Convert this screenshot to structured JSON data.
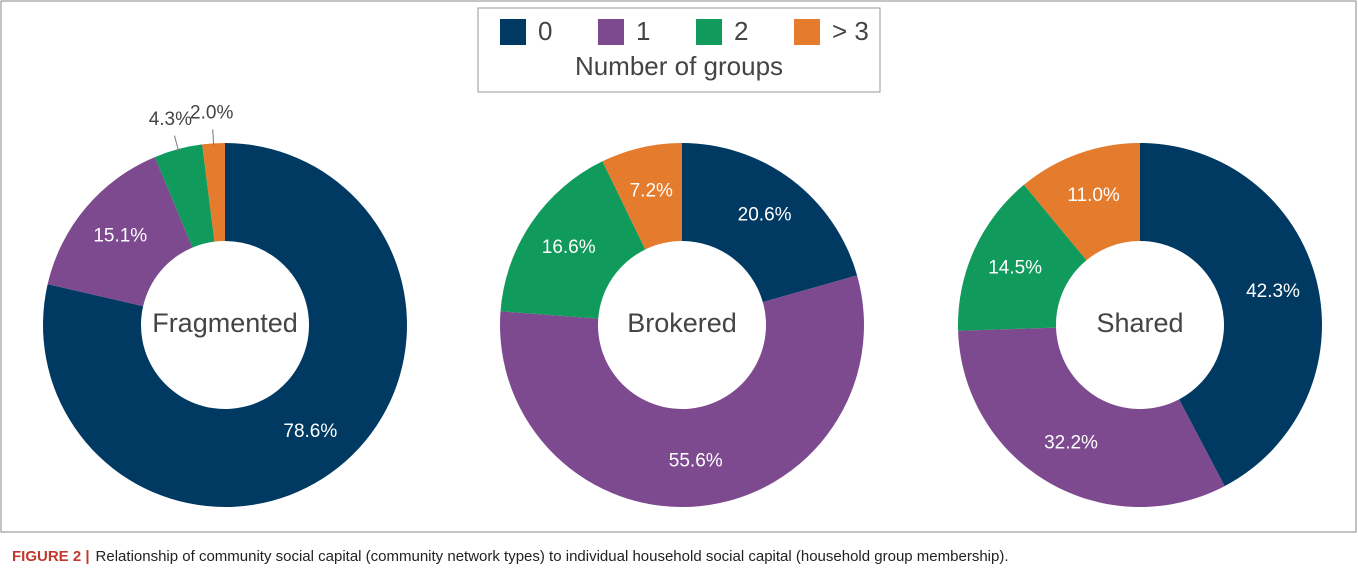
{
  "chart_data": [
    {
      "type": "pie",
      "title": "Fragmented",
      "categories": [
        "0",
        "1",
        "2",
        "> 3"
      ],
      "values": [
        78.6,
        15.1,
        4.3,
        2.0
      ],
      "value_labels": [
        "78.6%",
        "15.1%",
        "4.3%",
        "2.0%"
      ],
      "colors": [
        "#003a63",
        "#7d4a8f",
        "#109a5b",
        "#e57b2d"
      ]
    },
    {
      "type": "pie",
      "title": "Brokered",
      "categories": [
        "0",
        "1",
        "2",
        "> 3"
      ],
      "values": [
        20.6,
        55.6,
        16.6,
        7.2
      ],
      "value_labels": [
        "20.6%",
        "55.6%",
        "16.6%",
        "7.2%"
      ],
      "colors": [
        "#003a63",
        "#7d4a8f",
        "#109a5b",
        "#e57b2d"
      ]
    },
    {
      "type": "pie",
      "title": "Shared",
      "categories": [
        "0",
        "1",
        "2",
        "> 3"
      ],
      "values": [
        42.3,
        32.2,
        14.5,
        11.0
      ],
      "value_labels": [
        "42.3%",
        "32.2%",
        "14.5%",
        "11.0%"
      ],
      "colors": [
        "#003a63",
        "#7d4a8f",
        "#109a5b",
        "#e57b2d"
      ]
    }
  ],
  "legend": {
    "title": "Number of groups"
  },
  "caption": {
    "label": "FIGURE 2 |",
    "text": "Relationship of community social capital (community network types) to individual household social capital (household group membership)."
  }
}
